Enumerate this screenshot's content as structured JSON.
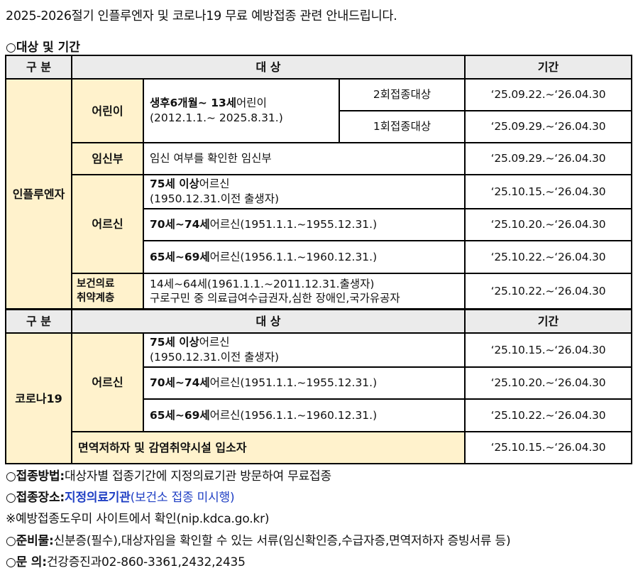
{
  "title": "2025-2026절기 인플루엔자 및 코로나19  무료 예방접종 관련 안내드립니다.",
  "section_title": "○대상 및 기간",
  "headers": {
    "division": "구 분",
    "target": "대 상",
    "period": "기간"
  },
  "flu": {
    "category": "인플루엔자",
    "children": {
      "label": "어린이",
      "desc_bold": "생후6개월~ 13세",
      "desc_rest": "어린이",
      "desc_range": "(2012.1.1.~ 2025.8.31.)",
      "dose2": "2회접종대상",
      "dose2_period": "‘25.09.22.~‘26.04.30",
      "dose1": "1회접종대상",
      "dose1_period": "‘25.09.29.~‘26.04.30"
    },
    "pregnant": {
      "label": "임신부",
      "desc": "임신 여부를 확인한 임신부",
      "period": "‘25.09.29.~‘26.04.30"
    },
    "elderly": {
      "label": "어르신",
      "r1_bold": "75세 이상",
      "r1_rest": "어르신",
      "r1_range": "(1950.12.31.이전 출생자)",
      "r1_period": "‘25.10.15.~‘26.04.30",
      "r2_bold": "70세~74세",
      "r2_rest": "어르신(1951.1.1.~1955.12.31.)",
      "r2_period": "‘25.10.20.~‘26.04.30",
      "r3_bold": "65세~69세",
      "r3_rest": "어르신(1956.1.1.~1960.12.31.)",
      "r3_period": "‘25.10.22.~‘26.04.30"
    },
    "vulnerable": {
      "label_line1": "보건의료",
      "label_line2": "취약계층",
      "line1": "14세~64세(1961.1.1.~2011.12.31.출생자)",
      "line2": "구로구민 중 의료급여수급권자,심한 장애인,국가유공자",
      "period": "‘25.10.22.~‘26.04.30"
    }
  },
  "covid": {
    "category": "코로나19",
    "elderly": {
      "label": "어르신",
      "r1_bold": "75세 이상",
      "r1_rest": "어르신",
      "r1_range": "(1950.12.31.이전 출생자)",
      "r1_period": "‘25.10.15.~‘26.04.30",
      "r2_bold": "70세~74세",
      "r2_rest": "어르신(1951.1.1.~1955.12.31.)",
      "r2_period": "‘25.10.20.~‘26.04.30",
      "r3_bold": "65세~69세",
      "r3_rest": "어르신(1956.1.1.~1960.12.31.)",
      "r3_period": "‘25.10.22.~‘26.04.30"
    },
    "immuno": {
      "label": "면역저하자 및 감염취약시설 입소자",
      "period": "‘25.10.15.~‘26.04.30"
    }
  },
  "footer": {
    "method_label": "○접종방법:",
    "method_text": "대상자별 접종기간에 지정의료기관 방문하여 무료접종",
    "place_label": "○접종장소:",
    "place_bold": "지정의료기관",
    "place_rest": "(보건소 접종 미시행)",
    "note": "※예방접종도우미 사이트에서 확인(nip.kdca.go.kr)",
    "prep_label": "○준비물:",
    "prep_text": "신분증(필수),대상자임을 확인할 수 있는 서류(임신확인증,수급자증,면역저하자 증빙서류 등)",
    "contact_label": "○문 의:",
    "contact_text": "건강증진과02-860-3361,2432,2435"
  },
  "colors": {
    "category_bg": "#fff2cc",
    "header_bg": "#ebebeb",
    "link_blue": "#1f3fc4"
  }
}
